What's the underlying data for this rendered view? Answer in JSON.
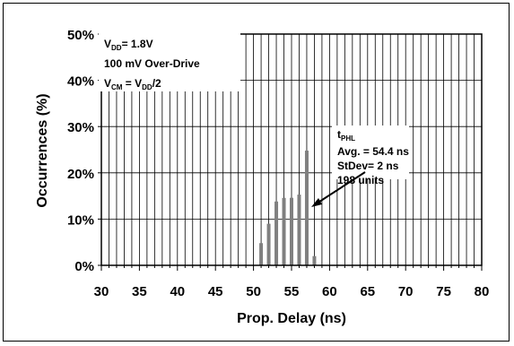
{
  "chart_data": {
    "type": "bar",
    "title": "",
    "xlabel": "Prop. Delay (ns)",
    "ylabel": "Occurrences (%)",
    "xlim": [
      30,
      80
    ],
    "ylim": [
      0,
      50
    ],
    "x_ticks": [
      "30",
      "35",
      "40",
      "45",
      "50",
      "55",
      "60",
      "65",
      "70",
      "75",
      "80"
    ],
    "y_ticks": [
      "0%",
      "10%",
      "20%",
      "30%",
      "40%",
      "50%"
    ],
    "grid": true,
    "x": [
      51,
      52,
      53,
      54,
      55,
      56,
      57,
      58
    ],
    "values": [
      4.8,
      9.0,
      13.8,
      14.6,
      14.6,
      15.3,
      24.8,
      2.0
    ],
    "bar_color": "#808080",
    "annotation_conditions": {
      "line1_main": "V",
      "line1_sub": "DD",
      "line1_rest": "= 1.8V",
      "line2": "100 mV Over-Drive",
      "line3_main": "V",
      "line3_sub": "CM",
      "line3_mid": " = V",
      "line3_sub2": "DD",
      "line3_rest": "/2"
    },
    "annotation_stats": {
      "line1_main": "t",
      "line1_sub": "PHL",
      "line2": "Avg. = 54.4 ns",
      "line3": "StDev= 2 ns",
      "line4": "198 units"
    }
  }
}
